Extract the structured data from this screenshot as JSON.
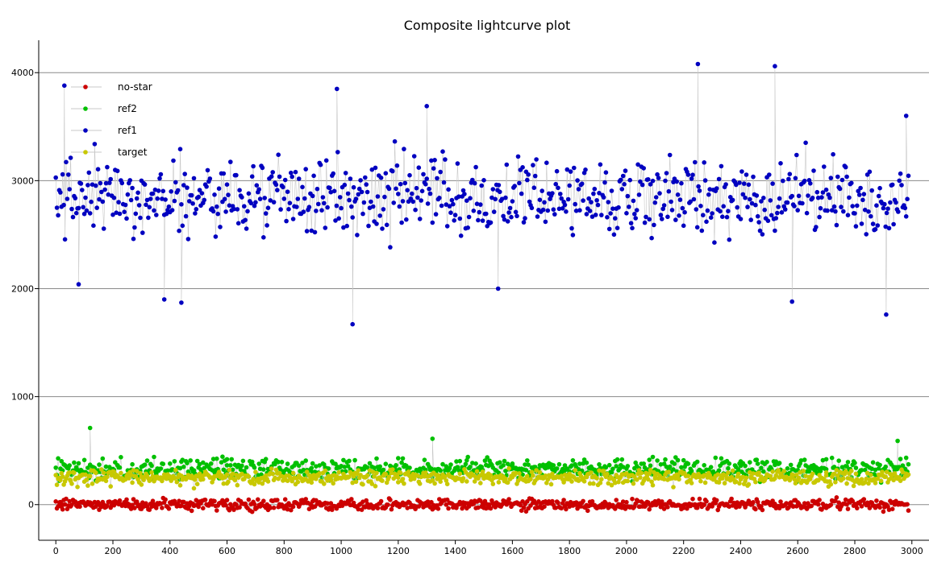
{
  "chart_data": {
    "type": "scatter",
    "title": "Composite lightcurve plot",
    "xlabel": "",
    "ylabel": "",
    "xlim": [
      -60,
      3060
    ],
    "ylim": [
      -330,
      4300
    ],
    "x_ticks": [
      "0",
      "200",
      "400",
      "600",
      "800",
      "1000",
      "1200",
      "1400",
      "1600",
      "1800",
      "2000",
      "2200",
      "2400",
      "2600",
      "2800",
      "3000"
    ],
    "y_ticks": [
      "0",
      "1000",
      "2000",
      "3000",
      "4000"
    ],
    "grid": "horizontal",
    "legend_position": "top-left",
    "x_range": [
      0,
      2990
    ],
    "series": [
      {
        "name": "no-star",
        "color": "#cc0000",
        "markers": "connected",
        "approx_level": 0,
        "approx_spread": 60,
        "samples": [
          [
            20,
            -20
          ],
          [
            150,
            10
          ],
          [
            300,
            -40
          ],
          [
            500,
            20
          ],
          [
            700,
            -30
          ],
          [
            900,
            30
          ],
          [
            1100,
            -10
          ],
          [
            1300,
            20
          ],
          [
            1500,
            -30
          ],
          [
            1700,
            10
          ],
          [
            1900,
            -20
          ],
          [
            2100,
            30
          ],
          [
            2300,
            -10
          ],
          [
            2500,
            20
          ],
          [
            2700,
            -30
          ],
          [
            2900,
            10
          ]
        ]
      },
      {
        "name": "ref2",
        "color": "#00c000",
        "markers": "connected",
        "approx_level": 330,
        "approx_spread": 110,
        "samples": [
          [
            120,
            710
          ],
          [
            300,
            350
          ],
          [
            600,
            420
          ],
          [
            900,
            300
          ],
          [
            1200,
            430
          ],
          [
            1320,
            610
          ],
          [
            1600,
            380
          ],
          [
            1900,
            320
          ],
          [
            2200,
            410
          ],
          [
            2400,
            360
          ],
          [
            2700,
            420
          ],
          [
            2950,
            590
          ]
        ]
      },
      {
        "name": "ref1",
        "color": "#0000c0",
        "markers": "connected",
        "approx_level": 2850,
        "approx_spread": 420,
        "samples": [
          [
            30,
            3880
          ],
          [
            80,
            2040
          ],
          [
            380,
            1900
          ],
          [
            440,
            1870
          ],
          [
            985,
            3850
          ],
          [
            1040,
            1670
          ],
          [
            1300,
            3690
          ],
          [
            1550,
            2000
          ],
          [
            2250,
            4080
          ],
          [
            2520,
            4060
          ],
          [
            2580,
            1880
          ],
          [
            2910,
            1760
          ],
          [
            2980,
            3600
          ]
        ]
      },
      {
        "name": "target",
        "color": "#c8c800",
        "markers": "connected",
        "approx_level": 250,
        "approx_spread": 80,
        "samples": [
          [
            50,
            230
          ],
          [
            300,
            260
          ],
          [
            600,
            280
          ],
          [
            900,
            240
          ],
          [
            1200,
            250
          ],
          [
            1500,
            270
          ],
          [
            1800,
            240
          ],
          [
            2100,
            260
          ],
          [
            2400,
            250
          ],
          [
            2700,
            270
          ],
          [
            2950,
            240
          ]
        ]
      }
    ]
  }
}
